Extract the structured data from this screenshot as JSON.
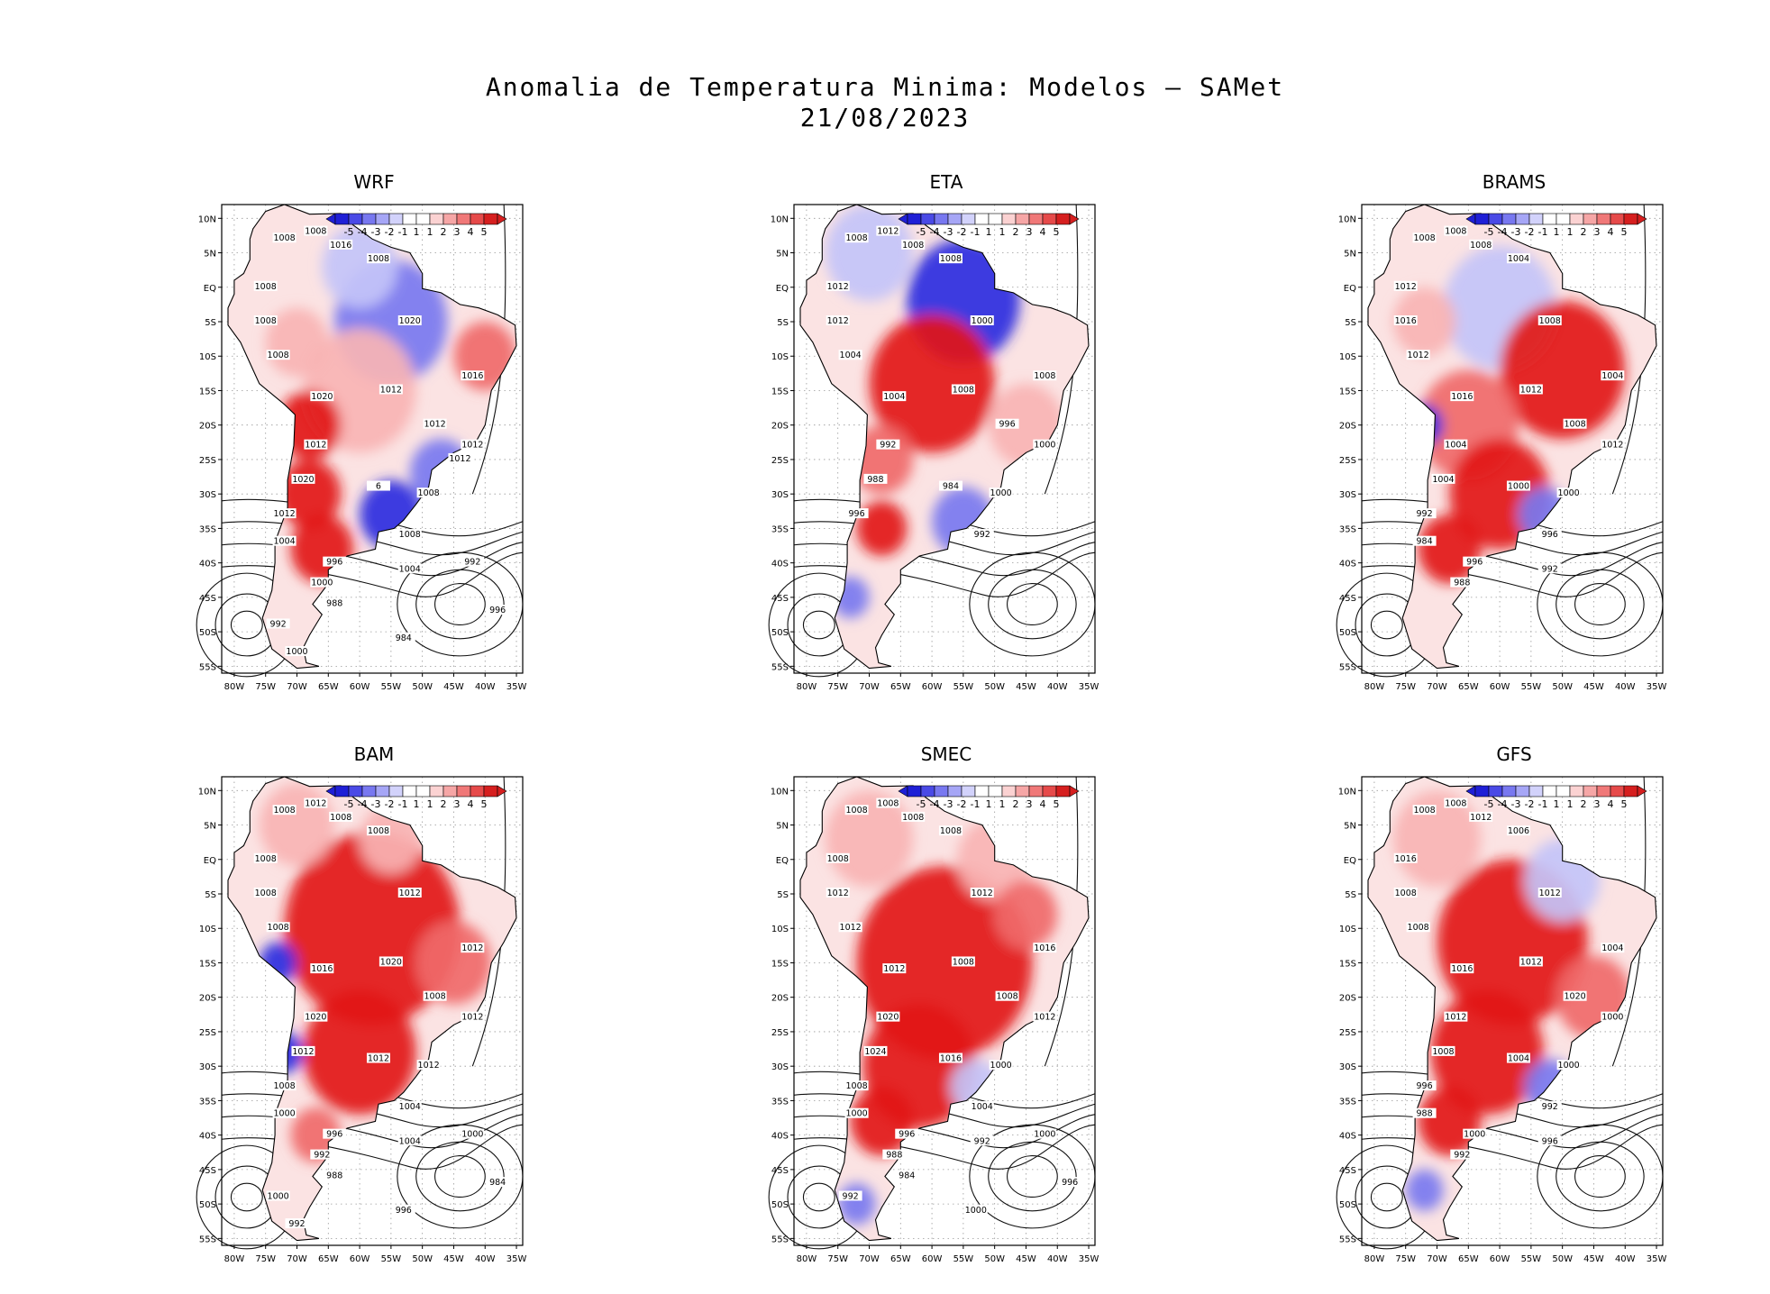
{
  "title": "Anomalia de Temperatura Minima: Modelos — SAMet",
  "subtitle": "21/08/2023",
  "chart_data": {
    "type": "heatmap",
    "title": "Anomalia de Temperatura Minima: Modelos — SAMet",
    "date": "21/08/2023",
    "colorbar": {
      "labels": [
        "-5",
        "-4",
        "-3",
        "-2",
        "-1",
        "1",
        "1",
        "2",
        "3",
        "4",
        "5"
      ],
      "colors": [
        "#1f1fd6",
        "#4a4ae6",
        "#7878f0",
        "#a6a6f6",
        "#d2d2fb",
        "#ffffff",
        "#ffffff",
        "#fbd2d2",
        "#f6a6a6",
        "#f07878",
        "#e64a4a",
        "#d61f1f"
      ]
    },
    "x_ticks": [
      "80W",
      "75W",
      "70W",
      "65W",
      "60W",
      "55W",
      "50W",
      "45W",
      "40W",
      "35W"
    ],
    "y_ticks": [
      "10N",
      "5N",
      "EQ",
      "5S",
      "10S",
      "15S",
      "20S",
      "25S",
      "30S",
      "35S",
      "40S",
      "45S",
      "50S",
      "55S"
    ],
    "xlim": [
      -82,
      -34
    ],
    "ylim": [
      -56,
      12
    ],
    "panels": [
      {
        "name": "WRF",
        "contour_labels": [
          "1008",
          "1008",
          "1008",
          "1016",
          "1008",
          "1008",
          "1020",
          "1016",
          "1012",
          "1020",
          "1008",
          "1012",
          "1012",
          "1012",
          "1020",
          "6",
          "1008",
          "1012",
          "1008",
          "1004",
          "996",
          "1004",
          "1000",
          "992",
          "988",
          "996",
          "992",
          "984",
          "1000",
          "1012"
        ]
      },
      {
        "name": "ETA",
        "contour_labels": [
          "1008",
          "1012",
          "1008",
          "1008",
          "1012",
          "1012",
          "1000",
          "1008",
          "1008",
          "1004",
          "1004",
          "996",
          "1000",
          "992",
          "988",
          "984",
          "1000",
          "996",
          "992"
        ]
      },
      {
        "name": "BRAMS",
        "contour_labels": [
          "1008",
          "1008",
          "1004",
          "1008",
          "1012",
          "1016",
          "1008",
          "1004",
          "1012",
          "1016",
          "1012",
          "1008",
          "1012",
          "1004",
          "1004",
          "1000",
          "1000",
          "992",
          "996",
          "984",
          "996",
          "992",
          "988"
        ]
      },
      {
        "name": "BAM",
        "contour_labels": [
          "1008",
          "1012",
          "1008",
          "1008",
          "1008",
          "1008",
          "1012",
          "1012",
          "1020",
          "1016",
          "1008",
          "1008",
          "1012",
          "1020",
          "1012",
          "1012",
          "1012",
          "1008",
          "1004",
          "1000",
          "996",
          "1004",
          "992",
          "1000",
          "988",
          "984",
          "1000",
          "996",
          "992"
        ]
      },
      {
        "name": "SMEC",
        "contour_labels": [
          "1008",
          "1008",
          "1008",
          "1008",
          "1008",
          "1012",
          "1012",
          "1016",
          "1008",
          "1012",
          "1012",
          "1008",
          "1012",
          "1020",
          "1024",
          "1016",
          "1000",
          "1008",
          "1004",
          "1000",
          "996",
          "992",
          "988",
          "1000",
          "984",
          "996",
          "992",
          "1000"
        ]
      },
      {
        "name": "GFS",
        "contour_labels": [
          "1008",
          "1008",
          "1006",
          "1012",
          "1016",
          "1008",
          "1012",
          "1004",
          "1012",
          "1016",
          "1008",
          "1020",
          "1000",
          "1012",
          "1008",
          "1004",
          "1000",
          "996",
          "992",
          "988",
          "1000",
          "996",
          "992"
        ]
      }
    ]
  }
}
